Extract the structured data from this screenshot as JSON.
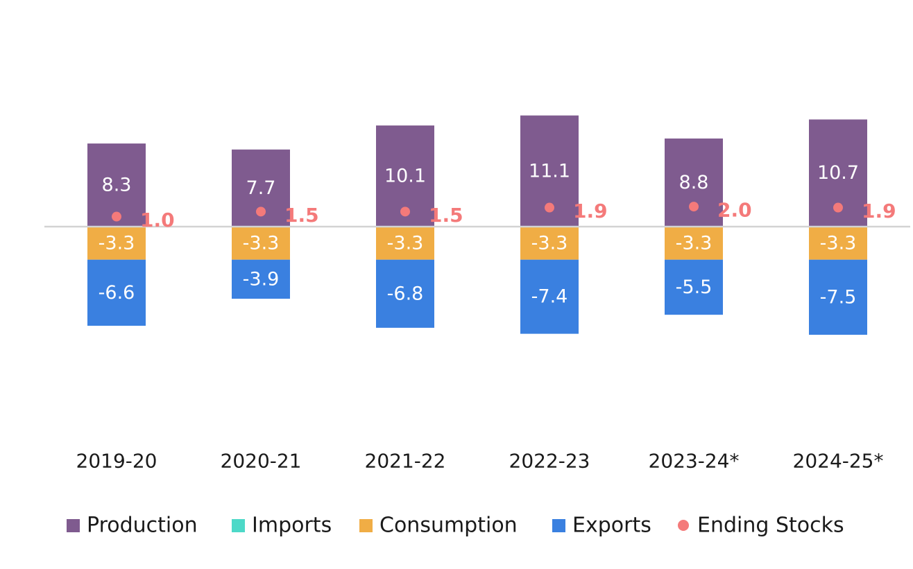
{
  "chart_data": {
    "type": "bar",
    "stacked": true,
    "categories": [
      "2019-20",
      "2020-21",
      "2021-22",
      "2022-23",
      "2023-24*",
      "2024-25*"
    ],
    "series": [
      {
        "name": "Production",
        "kind": "bar",
        "color": "#7f5b8f",
        "values": [
          8.3,
          7.7,
          10.1,
          11.1,
          8.8,
          10.7
        ]
      },
      {
        "name": "Imports",
        "kind": "bar",
        "color": "#4dd9c8",
        "values": [
          0,
          0,
          0,
          0,
          0,
          0
        ]
      },
      {
        "name": "Consumption",
        "kind": "bar",
        "color": "#f0ad45",
        "values": [
          -3.3,
          -3.3,
          -3.3,
          -3.3,
          -3.3,
          -3.3
        ]
      },
      {
        "name": "Exports",
        "kind": "bar",
        "color": "#3a80e0",
        "values": [
          -6.6,
          -3.9,
          -6.8,
          -7.4,
          -5.5,
          -7.5
        ]
      },
      {
        "name": "Ending Stocks",
        "kind": "scatter",
        "color": "#f47a7a",
        "values": [
          1.0,
          1.5,
          1.5,
          1.9,
          2.0,
          1.9
        ]
      }
    ],
    "value_labels": {
      "Production": [
        "8.3",
        "7.7",
        "10.1",
        "11.1",
        "8.8",
        "10.7"
      ],
      "Consumption": [
        "-3.3",
        "-3.3",
        "-3.3",
        "-3.3",
        "-3.3",
        "-3.3"
      ],
      "Exports": [
        "-6.6",
        "-3.9",
        "-6.8",
        "-7.4",
        "-5.5",
        "-7.5"
      ],
      "Ending Stocks": [
        "1.0",
        "1.5",
        "1.5",
        "1.9",
        "2.0",
        "1.9"
      ]
    },
    "legend_position": "bottom",
    "gridlines": false,
    "zero_line_color": "#d3d3d3",
    "ylim": [
      -15,
      15
    ]
  }
}
